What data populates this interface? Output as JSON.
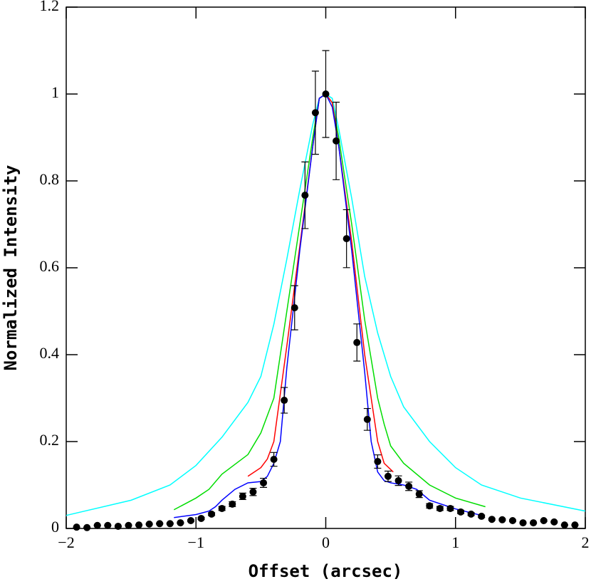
{
  "chart_data": {
    "type": "line",
    "x_label": "Offset (arcsec)",
    "y_label": "Normalized Intensity",
    "xlim": [
      -2,
      2
    ],
    "ylim": [
      0,
      1.2
    ],
    "xticks": [
      {
        "value": -2,
        "label": "−2"
      },
      {
        "value": -1,
        "label": "−1"
      },
      0,
      1,
      2
    ],
    "yticks": [
      0,
      0.2,
      0.4,
      0.6,
      0.8,
      1,
      1.2
    ],
    "points": {
      "color": "#000000",
      "x": [
        -1.92,
        -1.84,
        -1.76,
        -1.68,
        -1.6,
        -1.52,
        -1.44,
        -1.36,
        -1.28,
        -1.2,
        -1.12,
        -1.04,
        -0.96,
        -0.88,
        -0.8,
        -0.72,
        -0.64,
        -0.56,
        -0.48,
        -0.4,
        -0.32,
        -0.24,
        -0.16,
        -0.08,
        0,
        0.08,
        0.16,
        0.24,
        0.32,
        0.4,
        0.48,
        0.56,
        0.64,
        0.72,
        0.8,
        0.88,
        0.96,
        1.04,
        1.12,
        1.2,
        1.28,
        1.36,
        1.44,
        1.52,
        1.6,
        1.68,
        1.76,
        1.84,
        1.92
      ],
      "values": [
        0.003,
        0.002,
        0.007,
        0.007,
        0.005,
        0.007,
        0.008,
        0.01,
        0.011,
        0.011,
        0.013,
        0.018,
        0.023,
        0.033,
        0.046,
        0.056,
        0.074,
        0.084,
        0.105,
        0.159,
        0.295,
        0.508,
        0.767,
        0.957,
        1.0,
        0.892,
        0.667,
        0.428,
        0.251,
        0.154,
        0.12,
        0.11,
        0.097,
        0.079,
        0.052,
        0.046,
        0.046,
        0.038,
        0.033,
        0.028,
        0.021,
        0.02,
        0.018,
        0.013,
        0.013,
        0.018,
        0.015,
        0.008,
        0.008
      ],
      "errors": [
        0.0003,
        0.0002,
        0.0007,
        0.0007,
        0.0005,
        0.0007,
        0.0008,
        0.001,
        0.0011,
        0.0011,
        0.0013,
        0.0018,
        0.0023,
        0.0033,
        0.0046,
        0.0056,
        0.0074,
        0.0084,
        0.0105,
        0.0159,
        0.0295,
        0.0508,
        0.0767,
        0.0957,
        0.1,
        0.0892,
        0.0667,
        0.0428,
        0.0251,
        0.0154,
        0.012,
        0.011,
        0.0097,
        0.0079,
        0.0052,
        0.0046,
        0.0046,
        0.0038,
        0.0033,
        0.0028,
        0.0021,
        0.002,
        0.0018,
        0.0013,
        0.0013,
        0.0018,
        0.0015,
        0.0008,
        0.0008
      ]
    },
    "series": [
      {
        "color": "#00ffff",
        "x": [
          -2,
          -1.5,
          -1.2,
          -1,
          -0.8,
          -0.6,
          -0.5,
          -0.4,
          -0.3,
          -0.2,
          -0.1,
          -0.05,
          0,
          0.05,
          0.1,
          0.2,
          0.3,
          0.4,
          0.5,
          0.6,
          0.8,
          1,
          1.2,
          1.5,
          2
        ],
        "values": [
          0.03,
          0.065,
          0.1,
          0.145,
          0.21,
          0.29,
          0.35,
          0.47,
          0.62,
          0.78,
          0.93,
          0.99,
          1.0,
          0.99,
          0.92,
          0.76,
          0.58,
          0.45,
          0.35,
          0.28,
          0.2,
          0.14,
          0.1,
          0.07,
          0.04
        ]
      },
      {
        "color": "#00dd00",
        "x": [
          -1.17,
          -1,
          -0.9,
          -0.8,
          -0.6,
          -0.5,
          -0.4,
          -0.3,
          -0.2,
          -0.1,
          -0.05,
          0,
          0.05,
          0.1,
          0.2,
          0.3,
          0.4,
          0.45,
          0.5,
          0.6,
          0.8,
          1,
          1.23
        ],
        "values": [
          0.043,
          0.07,
          0.09,
          0.125,
          0.17,
          0.22,
          0.3,
          0.5,
          0.7,
          0.9,
          0.99,
          1.0,
          0.98,
          0.9,
          0.7,
          0.48,
          0.3,
          0.24,
          0.19,
          0.15,
          0.1,
          0.07,
          0.05
        ]
      },
      {
        "color": "#ff0000",
        "x": [
          -0.6,
          -0.5,
          -0.45,
          -0.4,
          -0.3,
          -0.2,
          -0.1,
          -0.05,
          0,
          0.05,
          0.1,
          0.2,
          0.3,
          0.4,
          0.45,
          0.52
        ],
        "values": [
          0.12,
          0.14,
          0.16,
          0.2,
          0.42,
          0.65,
          0.88,
          0.99,
          1.0,
          0.98,
          0.88,
          0.66,
          0.4,
          0.2,
          0.15,
          0.13
        ]
      },
      {
        "color": "#0000ff",
        "x": [
          -1.17,
          -1,
          -0.9,
          -0.85,
          -0.8,
          -0.7,
          -0.6,
          -0.5,
          -0.45,
          -0.4,
          -0.35,
          -0.3,
          -0.2,
          -0.1,
          -0.05,
          0,
          0.05,
          0.1,
          0.2,
          0.3,
          0.35,
          0.4,
          0.45,
          0.5,
          0.6,
          0.7,
          0.8,
          1,
          1.2
        ],
        "values": [
          0.025,
          0.032,
          0.04,
          0.05,
          0.065,
          0.09,
          0.105,
          0.108,
          0.12,
          0.15,
          0.2,
          0.37,
          0.64,
          0.88,
          0.99,
          1.0,
          0.97,
          0.88,
          0.64,
          0.36,
          0.2,
          0.13,
          0.11,
          0.105,
          0.1,
          0.09,
          0.065,
          0.045,
          0.03
        ]
      }
    ]
  }
}
